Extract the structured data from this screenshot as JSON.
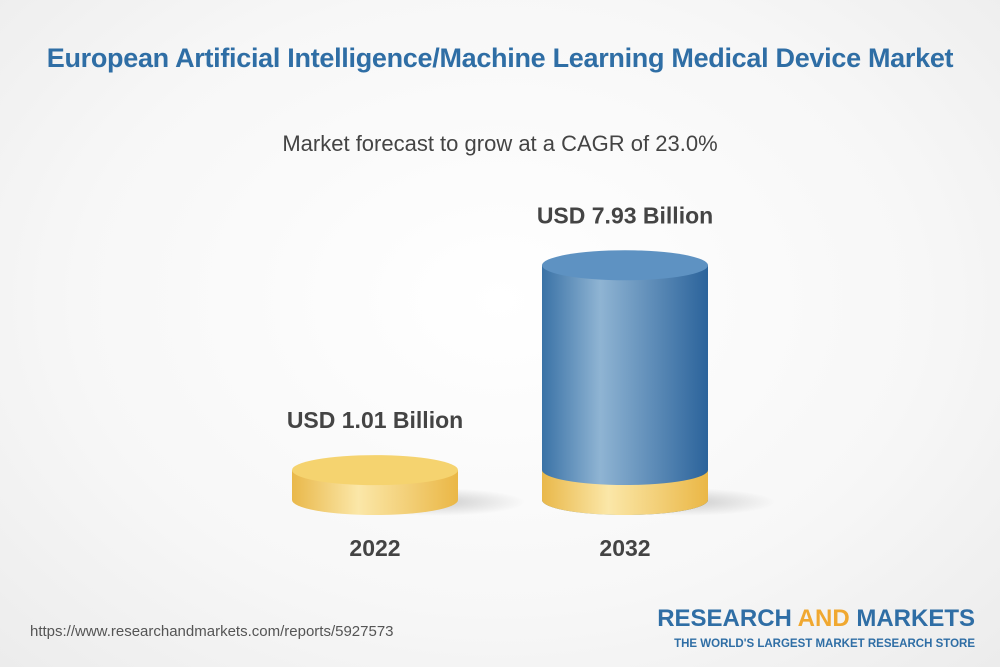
{
  "chart_data": {
    "type": "cylinder",
    "title": "European Artificial Intelligence/Machine Learning Medical Device Market",
    "subtitle": "Market forecast to grow at a CAGR of 23.0%",
    "categories": [
      "2022",
      "2032"
    ],
    "values": [
      1.01,
      7.93
    ],
    "value_labels": [
      "USD 1.01 Billion",
      "USD 7.93 Billion"
    ],
    "colors": [
      "#f2c75c",
      "#3f7cb0"
    ]
  },
  "footer": {
    "url": "https://www.researchandmarkets.com/reports/5927573",
    "brand": {
      "first": "RESEARCH",
      "middle": "AND",
      "last": "MARKETS"
    },
    "tagline": "THE WORLD'S LARGEST MARKET RESEARCH STORE"
  }
}
